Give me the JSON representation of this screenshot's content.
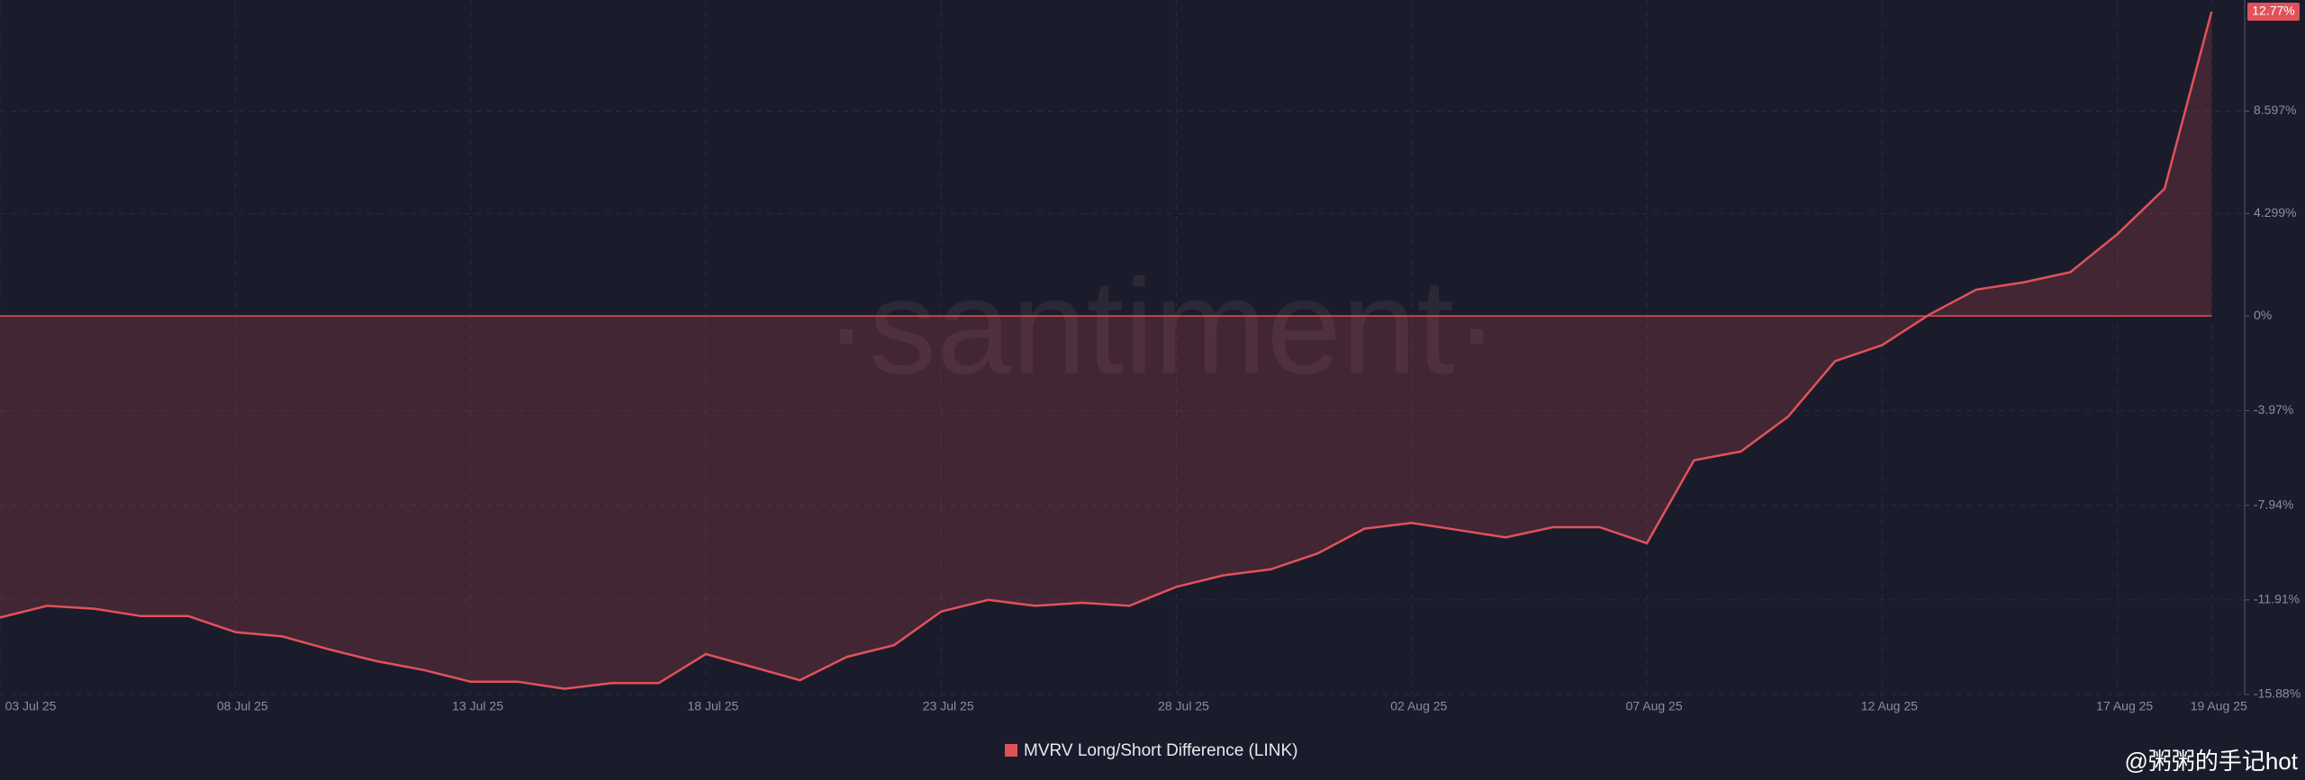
{
  "chart_data": {
    "type": "area",
    "series": [
      {
        "name": "MVRV Long/Short Difference (LINK)",
        "color": "#e0525a",
        "values": [
          -12.65,
          -12.16,
          -12.28,
          -12.59,
          -12.59,
          -13.26,
          -13.44,
          -13.99,
          -14.48,
          -14.85,
          -15.34,
          -15.34,
          -15.64,
          -15.4,
          -15.4,
          -14.18,
          -14.73,
          -15.28,
          -14.3,
          -13.81,
          -12.4,
          -11.91,
          -12.16,
          -12.03,
          -12.16,
          -11.36,
          -10.88,
          -10.63,
          -9.96,
          -8.92,
          -8.68,
          -8.98,
          -9.29,
          -8.86,
          -8.86,
          -9.53,
          -6.05,
          -5.68,
          -4.22,
          -1.89,
          -1.22,
          0.06,
          1.11,
          1.41,
          1.84,
          3.44,
          5.34,
          12.77
        ]
      }
    ],
    "categories": [
      "03 Jul 25",
      null,
      null,
      null,
      null,
      "08 Jul 25",
      null,
      null,
      null,
      null,
      "13 Jul 25",
      null,
      null,
      null,
      null,
      "18 Jul 25",
      null,
      null,
      null,
      null,
      "23 Jul 25",
      null,
      null,
      null,
      null,
      "28 Jul 25",
      null,
      null,
      null,
      null,
      "02 Aug 25",
      null,
      null,
      null,
      null,
      "07 Aug 25",
      null,
      null,
      null,
      null,
      "12 Aug 25",
      null,
      null,
      null,
      null,
      "17 Aug 25",
      null,
      "19 Aug 25"
    ],
    "ylim": [
      -15.88,
      13.26
    ],
    "yticks": [
      {
        "value": 12.77,
        "label": "12.77%"
      },
      {
        "value": 8.597,
        "label": "8.597%"
      },
      {
        "value": 4.299,
        "label": "4.299%"
      },
      {
        "value": 0,
        "label": "0%"
      },
      {
        "value": -3.97,
        "label": "-3.97%"
      },
      {
        "value": -7.94,
        "label": "-7.94%"
      },
      {
        "value": -11.91,
        "label": "-11.91%"
      },
      {
        "value": -15.88,
        "label": "-15.88%"
      }
    ],
    "grid": true,
    "legend": "bottom",
    "watermark": "·santiment·",
    "credit": "@粥粥的手记hot"
  }
}
